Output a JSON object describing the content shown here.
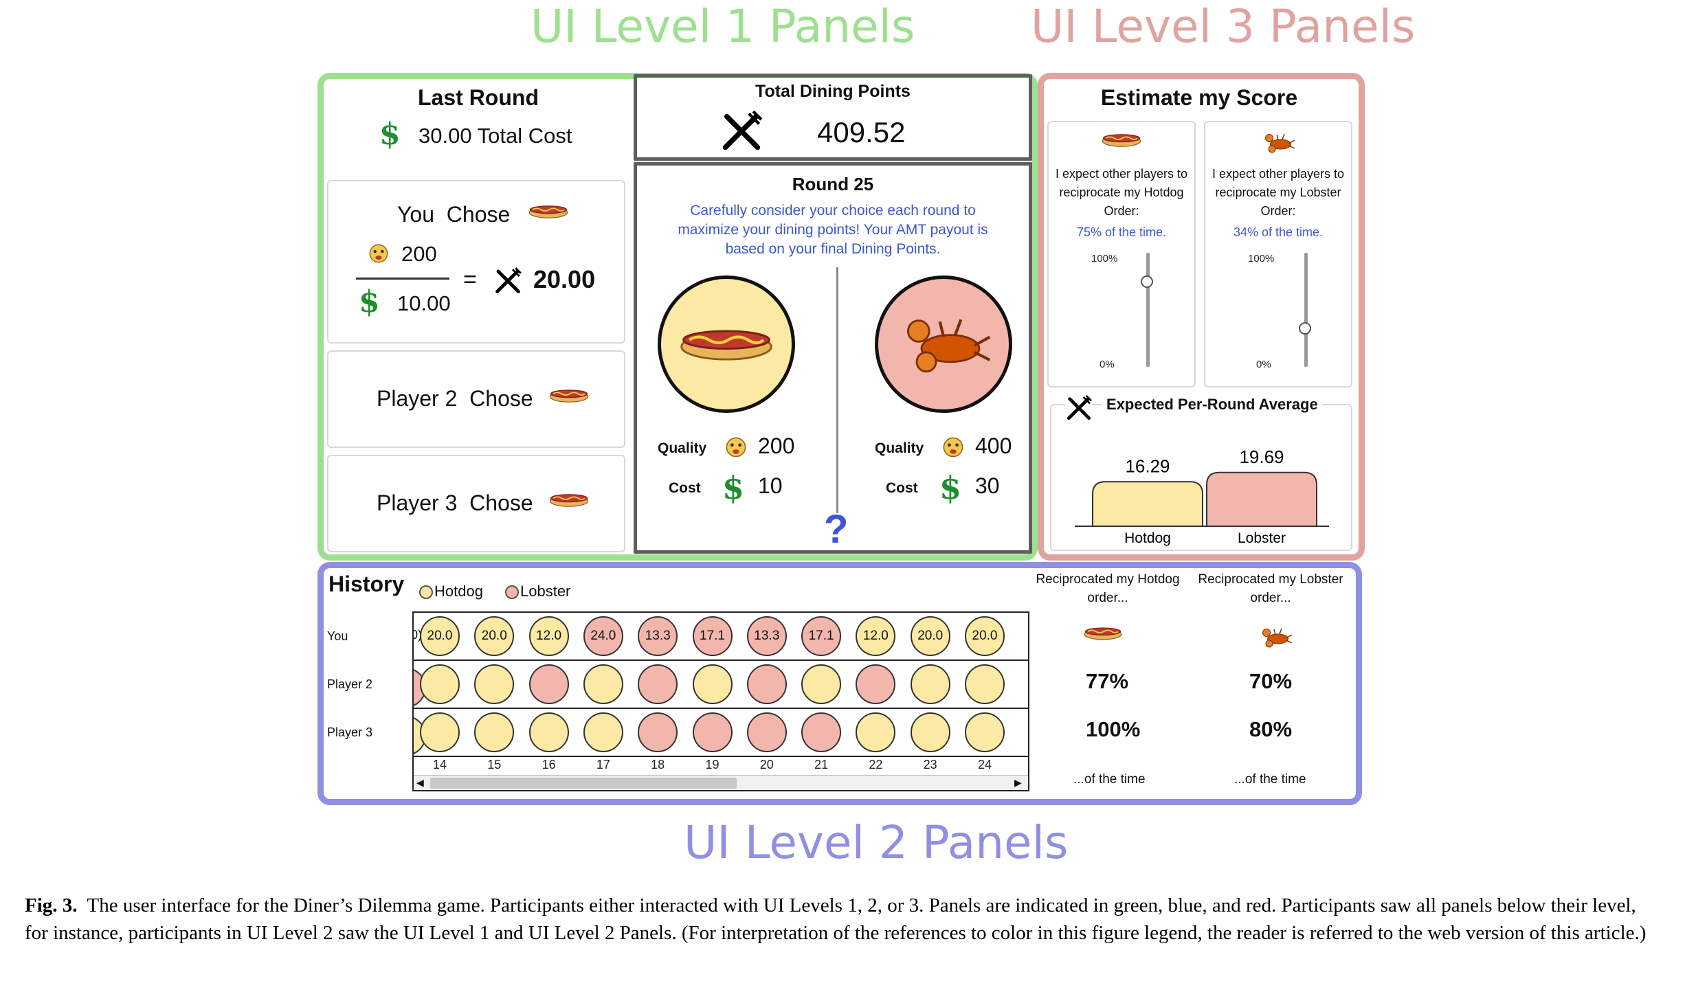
{
  "headers": {
    "level1": "UI Level 1 Panels",
    "level3": "UI Level 3 Panels",
    "level2": "UI Level 2 Panels"
  },
  "colors": {
    "green": "#9de08f",
    "red": "#e0a3a0",
    "blue": "#8f8fe4",
    "hotdog": "#fbe9a4",
    "lobster": "#f3b6ad",
    "dollar": "#1e8f2e",
    "text_blue": "#3d56d6"
  },
  "last_round": {
    "title": "Last Round",
    "total_cost": "30.00 Total Cost",
    "you_chose": "You  Chose",
    "quality": "200",
    "cost": "10.00",
    "equals": "=",
    "points": "20.00",
    "player2": "Player 2  Chose",
    "player3": "Player 3  Chose"
  },
  "dining": {
    "title": "Total Dining Points",
    "value": "409.52"
  },
  "round": {
    "title": "Round 25",
    "message": "Carefully consider your choice each round to maximize your dining points!  Your AMT payout is based on your final Dining Points.",
    "hotdog": {
      "quality_label": "Quality",
      "quality": "200",
      "cost_label": "Cost",
      "cost": "10"
    },
    "lobster": {
      "quality_label": "Quality",
      "quality": "400",
      "cost_label": "Cost",
      "cost": "30"
    },
    "question": "?"
  },
  "estimate": {
    "title": "Estimate my Score",
    "hotdog_text": "I expect other players to reciprocate my Hotdog Order:",
    "hotdog_pct": "75% of the time.",
    "hotdog_level": 75,
    "lobster_text": "I expect other players to reciprocate my Lobster Order:",
    "lobster_pct": "34% of the time.",
    "lobster_level": 34,
    "max_label": "100%",
    "min_label": "0%",
    "avg_title": "Expected Per-Round Average"
  },
  "chart_data": {
    "type": "bar",
    "title": "Expected Per-Round Average",
    "categories": [
      "Hotdog",
      "Lobster"
    ],
    "values": [
      16.29,
      19.69
    ],
    "value_labels": [
      "16.29",
      "19.69"
    ],
    "ylim": [
      0,
      25
    ]
  },
  "history": {
    "title": "History",
    "legend_hotdog": "Hotdog",
    "legend_lobster": "Lobster",
    "row_labels": [
      "You",
      "Player 2",
      "Player 3"
    ],
    "rounds": [
      "14",
      "15",
      "16",
      "17",
      "18",
      "19",
      "20",
      "21",
      "22",
      "23",
      "24"
    ],
    "you_values": [
      "20.0",
      "20.0",
      "12.0",
      "24.0",
      "13.3",
      "17.1",
      "13.3",
      "17.1",
      "12.0",
      "20.0",
      "20.0"
    ],
    "you_choices": [
      "h",
      "h",
      "h",
      "l",
      "l",
      "l",
      "l",
      "l",
      "h",
      "h",
      "h"
    ],
    "p2_choices": [
      "h",
      "h",
      "l",
      "h",
      "l",
      "h",
      "l",
      "h",
      "l",
      "h",
      "h"
    ],
    "p3_choices": [
      "h",
      "h",
      "h",
      "h",
      "l",
      "l",
      "l",
      "l",
      "h",
      "h",
      "h"
    ],
    "partial_you": "0)"
  },
  "reciprocated": {
    "hotdog_label": "Reciprocated my Hotdog order...",
    "lobster_label": "Reciprocated my Lobster order...",
    "hotdog_p2": "77%",
    "lobster_p2": "70%",
    "hotdog_p3": "100%",
    "lobster_p3": "80%",
    "footer": "...of the time"
  },
  "caption": {
    "label": "Fig. 3.",
    "text": "The user interface for the Diner’s Dilemma game. Participants either interacted with UI Levels 1, 2, or 3. Panels are indicated in green, blue, and red. Participants saw all panels below their level, for instance, participants in UI Level 2 saw the UI Level 1 and UI Level 2 Panels. (For interpretation of the references to color in this figure legend, the reader is referred to the web version of this article.)"
  }
}
